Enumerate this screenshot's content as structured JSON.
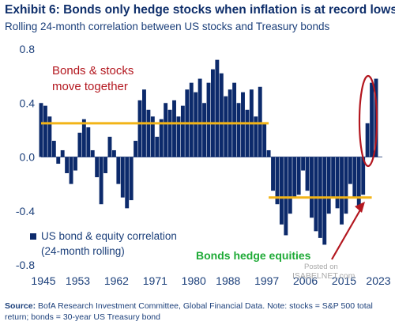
{
  "header": {
    "title": "Exhibit 6: Bonds only hedge stocks when inflation is at record lows",
    "subtitle": "Rolling 24-month correlation between US stocks and Treasury bonds"
  },
  "annotations": {
    "bonds_stocks_line1": "Bonds & stocks",
    "bonds_stocks_line2": "move together",
    "hedge": "Bonds hedge equities",
    "watermark_line1": "Posted on",
    "watermark_line2": "ISABELNET.com"
  },
  "legend": {
    "label_line1": "US bond & equity correlation",
    "label_line2": "(24-month rolling)"
  },
  "footer": {
    "source_label": "Source:",
    "source_text": "BofA Research Investment Committee, Global Financial Data. Note: stocks = S&P 500 total return; bonds = 30-year US Treasury bond"
  },
  "colors": {
    "bar": "#0c2a6b",
    "reference_line": "#f2b417",
    "annotation_red": "#b3171f",
    "annotation_green": "#1eaa36",
    "axis_text": "#1b3f7a"
  },
  "chart_data": {
    "type": "bar",
    "title": "",
    "xlabel": "",
    "ylabel": "",
    "ylim": [
      -0.8,
      0.8
    ],
    "xlim": [
      1945,
      2023
    ],
    "y_ticks": [
      "0.8",
      "0.4",
      "0.0",
      "-0.4",
      "-0.8"
    ],
    "x_ticks": [
      "1945",
      "1953",
      "1962",
      "1971",
      "1980",
      "1988",
      "1997",
      "2006",
      "2015",
      "2023"
    ],
    "grid": false,
    "legend_position": "bottom-left",
    "series": [
      {
        "name": "US bond & equity correlation (24-month rolling)",
        "x": [
          1945,
          1946,
          1947,
          1948,
          1949,
          1950,
          1951,
          1952,
          1953,
          1954,
          1955,
          1956,
          1957,
          1958,
          1959,
          1960,
          1961,
          1962,
          1963,
          1964,
          1965,
          1966,
          1967,
          1968,
          1969,
          1970,
          1971,
          1972,
          1973,
          1974,
          1975,
          1976,
          1977,
          1978,
          1979,
          1980,
          1981,
          1982,
          1983,
          1984,
          1985,
          1986,
          1987,
          1988,
          1989,
          1990,
          1991,
          1992,
          1993,
          1994,
          1995,
          1996,
          1997,
          1998,
          1999,
          2000,
          2001,
          2002,
          2003,
          2004,
          2005,
          2006,
          2007,
          2008,
          2009,
          2010,
          2011,
          2012,
          2013,
          2014,
          2015,
          2016,
          2017,
          2018,
          2019,
          2020,
          2021,
          2022,
          2023
        ],
        "values": [
          0.4,
          0.38,
          0.3,
          0.12,
          -0.05,
          0.05,
          -0.12,
          -0.2,
          -0.1,
          0.18,
          0.28,
          0.22,
          0.05,
          -0.15,
          -0.35,
          -0.12,
          0.15,
          0.05,
          -0.2,
          -0.3,
          -0.38,
          -0.32,
          0.12,
          0.42,
          0.5,
          0.35,
          0.3,
          0.15,
          0.28,
          0.4,
          0.35,
          0.42,
          0.3,
          0.38,
          0.5,
          0.55,
          0.48,
          0.58,
          0.4,
          0.55,
          0.65,
          0.72,
          0.62,
          0.45,
          0.5,
          0.55,
          0.4,
          0.48,
          0.35,
          0.5,
          0.3,
          0.52,
          0.25,
          0.05,
          -0.25,
          -0.35,
          -0.5,
          -0.58,
          -0.42,
          -0.3,
          -0.28,
          -0.1,
          -0.25,
          -0.45,
          -0.55,
          -0.6,
          -0.65,
          -0.42,
          -0.3,
          -0.38,
          -0.5,
          -0.42,
          -0.2,
          -0.3,
          -0.38,
          -0.28,
          0.25,
          0.55,
          0.58
        ]
      }
    ],
    "reference_lines": [
      {
        "from": 1945,
        "to": 1998,
        "y": 0.25
      },
      {
        "from": 1998,
        "to": 2022,
        "y": -0.3
      }
    ]
  }
}
